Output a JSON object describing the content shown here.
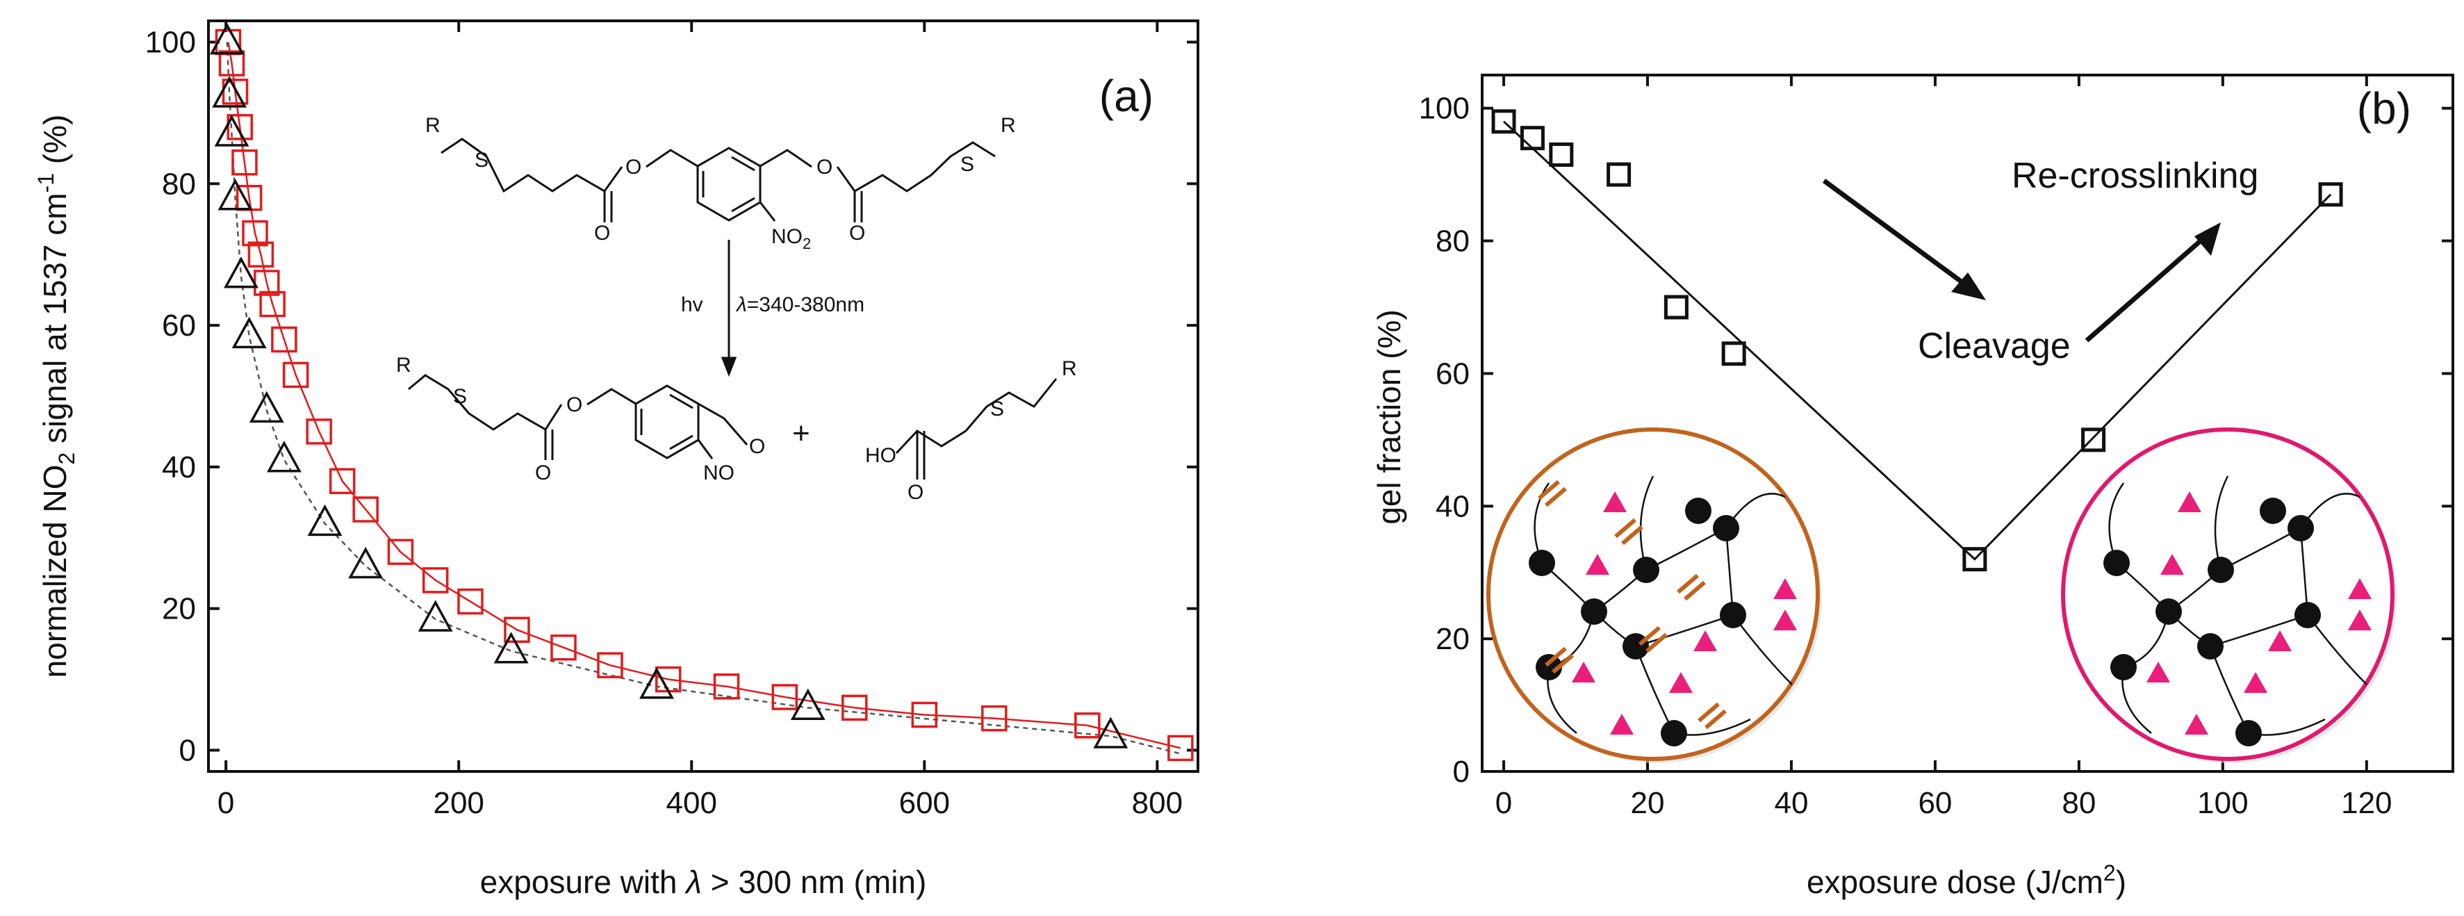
{
  "chart_data": [
    {
      "panel": "(a)",
      "type": "scatter",
      "xlabel_pre": "exposure with ",
      "xlabel_lambda": "λ",
      "xlabel_post": " > 300 nm (min)",
      "ylabel_pre": "normalized NO",
      "ylabel_sub": "2",
      "ylabel_mid": " signal at 1537 cm",
      "ylabel_sup": "-1",
      "ylabel_post": " (%)",
      "xlim": [
        -15,
        835
      ],
      "ylim": [
        -3,
        103
      ],
      "xticks": [
        0,
        200,
        400,
        600,
        800
      ],
      "yticks": [
        0,
        20,
        40,
        60,
        80,
        100
      ],
      "colors": {
        "squares": "#e01c1c",
        "triangles": "#111111",
        "fit_squares": "#e01c1c",
        "fit_triangles": "#555555"
      },
      "series": [
        {
          "name": "squares",
          "marker": "square",
          "x": [
            2,
            5,
            8,
            12,
            16,
            20,
            25,
            30,
            35,
            40,
            50,
            60,
            80,
            100,
            120,
            150,
            180,
            210,
            250,
            290,
            330,
            380,
            430,
            480,
            540,
            600,
            660,
            740,
            820
          ],
          "y": [
            100,
            97,
            93,
            88,
            83,
            78,
            73,
            70,
            66,
            63,
            58,
            53,
            45,
            38,
            34,
            28,
            24,
            21,
            17,
            14.5,
            12,
            10,
            9,
            7.5,
            6,
            5,
            4.5,
            3.5,
            0.3
          ]
        },
        {
          "name": "triangles",
          "marker": "triangle",
          "x": [
            1,
            3,
            5,
            8,
            13,
            20,
            35,
            50,
            85,
            120,
            180,
            245,
            370,
            500,
            760
          ],
          "y": [
            100,
            92.5,
            87,
            78,
            67,
            58.5,
            48,
            41,
            32,
            26,
            18.5,
            14,
            9,
            6,
            2
          ]
        }
      ],
      "chemistry": {
        "R_label": "R",
        "S_label": "S",
        "O_label": "O",
        "NO2_pre": "NO",
        "NO2_sub": "2",
        "NO_label": "NO",
        "HO_label": "HO",
        "hv": "hv",
        "lambda": "λ",
        "range": "=340-380nm",
        "plus": "+"
      }
    },
    {
      "panel": "(b)",
      "type": "scatter",
      "xlabel_pre": "exposure dose (J/cm",
      "xlabel_sup": "2",
      "xlabel_post": ")",
      "ylabel": "gel fraction (%)",
      "xlim": [
        -3,
        132
      ],
      "ylim": [
        0,
        105
      ],
      "xticks": [
        0,
        20,
        40,
        60,
        80,
        100,
        120
      ],
      "yticks": [
        0,
        20,
        40,
        60,
        80,
        100
      ],
      "series": [
        {
          "name": "gel fraction",
          "marker": "square",
          "x": [
            0,
            4,
            8,
            16,
            24,
            32,
            65.5,
            82,
            115
          ],
          "y": [
            98,
            95.5,
            93,
            90,
            70,
            63,
            32,
            50,
            87
          ]
        }
      ],
      "line": {
        "x": [
          0,
          65.5,
          115
        ],
        "y": [
          98,
          32,
          87
        ]
      },
      "annotations": {
        "cleavage": "Cleavage",
        "recrosslinking": "Re-crosslinking"
      },
      "colors": {
        "left_circle": "#c0641e",
        "right_circle": "#e0196e",
        "triangle_marker": "#ea1f7a",
        "crosslink": "#c0641e"
      }
    }
  ]
}
